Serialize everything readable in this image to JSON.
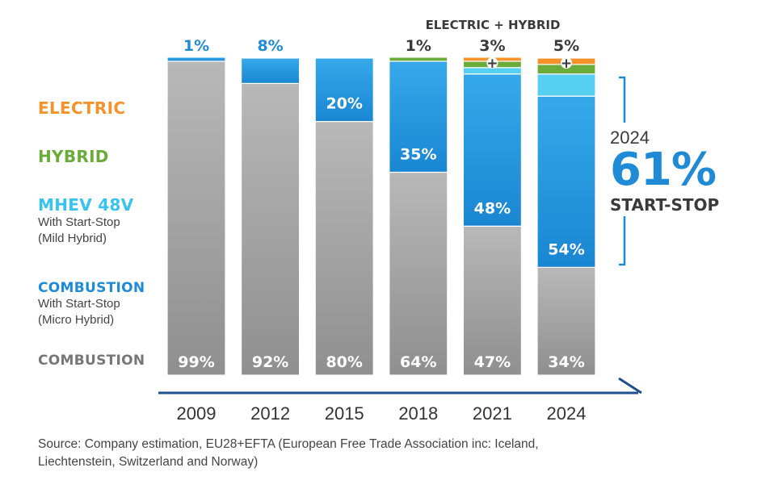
{
  "legend": {
    "electric": "ELECTRIC",
    "hybrid": "HYBRID",
    "mhev": {
      "title": "MHEV 48V",
      "line1": "With Start-Stop",
      "line2": "(Mild Hybrid)"
    },
    "combustion_ss": {
      "title": "COMBUSTION",
      "line1": "With Start-Stop",
      "line2": "(Micro Hybrid)"
    },
    "combustion": "COMBUSTION"
  },
  "summary": {
    "year": "2024",
    "percent": "61%",
    "label": "START-STOP"
  },
  "source": {
    "line1": "Source: Company estimation,  EU28+EFTA (European Free Trade Association inc: Iceland,",
    "line2": "Liechtenstein, Switzerland and Norway)"
  },
  "colors": {
    "combustion": "#9c9c9c",
    "combustion_ss": "#1f8bd6",
    "mhev": "#56cff0",
    "hybrid": "#6aab3a",
    "electric": "#f5922a",
    "axis": "#1e4f8f",
    "text_dark": "#3a3a3a"
  },
  "chart_data": {
    "type": "bar",
    "stacked": true,
    "categories": [
      "2009",
      "2012",
      "2015",
      "2018",
      "2021",
      "2024"
    ],
    "series": [
      {
        "name": "COMBUSTION",
        "values": [
          99,
          92,
          80,
          64,
          47,
          34
        ]
      },
      {
        "name": "COMBUSTION With Start-Stop (Micro Hybrid)",
        "values": [
          1,
          8,
          20,
          35,
          48,
          54
        ]
      },
      {
        "name": "MHEV 48V With Start-Stop (Mild Hybrid)",
        "values": [
          0,
          0,
          0,
          0,
          2,
          7
        ]
      },
      {
        "name": "HYBRID",
        "values": [
          0,
          0,
          0,
          1,
          2,
          3
        ]
      },
      {
        "name": "ELECTRIC",
        "values": [
          0,
          0,
          0,
          0,
          1,
          2
        ]
      }
    ],
    "combustion_labels": [
      "99%",
      "92%",
      "80%",
      "64%",
      "47%",
      "34%"
    ],
    "start_stop_labels": [
      "1%",
      "8%",
      "20%",
      "35%",
      "48%",
      "54%"
    ],
    "top_labels": [
      "1%",
      "8%",
      "",
      "1%",
      "3%",
      "5%"
    ],
    "top_header": "ELECTRIC + HYBRID",
    "ylim": [
      0,
      100
    ]
  }
}
